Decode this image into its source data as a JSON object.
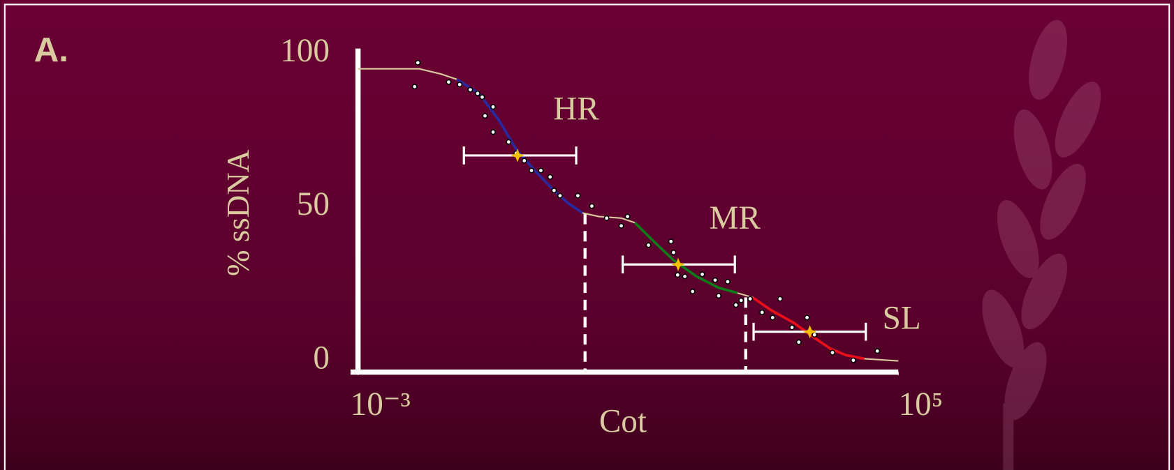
{
  "chart_data": {
    "type": "scatter",
    "panel_label": "A.",
    "xlabel": "Cot",
    "ylabel": "% ssDNA",
    "xscale": "log",
    "xlim": [
      0.001,
      100000
    ],
    "ylim": [
      0,
      100
    ],
    "xticks": [
      {
        "value": 0.001,
        "label": "10⁻³"
      },
      {
        "value": 100000,
        "label": "10⁵"
      }
    ],
    "yticks": [
      0,
      50,
      100
    ],
    "series": [
      {
        "color": "#ffffff",
        "x": [
          0.0077,
          0.0069,
          0.022,
          0.032,
          0.046,
          0.059,
          0.069,
          0.1,
          0.076,
          0.1,
          0.17,
          0.22,
          0.29,
          0.37,
          0.51,
          0.7,
          0.8,
          0.98,
          1.8,
          2.9,
          4.8,
          7.9,
          9.8,
          20,
          43,
          47,
          54,
          69,
          90,
          125,
          194,
          298,
          219,
          394,
          471,
          640,
          962,
          1377,
          1775,
          2670,
          3360,
          4450,
          5740,
          10600,
          21600,
          48900
        ],
        "values": [
          97.1,
          89.3,
          90.8,
          90.0,
          88.3,
          87.1,
          85.9,
          82.7,
          79.8,
          74.5,
          71.3,
          67.6,
          65.2,
          62.0,
          62.0,
          59.9,
          55.5,
          53.8,
          53.8,
          50.4,
          46.5,
          44.0,
          47.0,
          37.7,
          38.9,
          35.3,
          28.0,
          27.5,
          22.6,
          28.2,
          26.3,
          25.8,
          21.2,
          18.2,
          19.7,
          20.2,
          15.8,
          14.1,
          20.2,
          10.9,
          6.1,
          14.1,
          8.5,
          2.7,
          0.2,
          3.2
        ]
      }
    ],
    "curves": [
      {
        "color": "#d9caa0",
        "x": [
          0.001,
          0.0081,
          0.017,
          0.029
        ],
        "values": [
          95.1,
          95.1,
          93.4,
          91.7
        ]
      },
      {
        "color": "#2a2aa0",
        "x": [
          0.029,
          0.062,
          0.12,
          0.22,
          0.43,
          0.8,
          1.3,
          2.1
        ],
        "values": [
          91.7,
          87.1,
          78.6,
          68.9,
          61.6,
          55.5,
          51.3,
          48.2
        ]
      },
      {
        "color": "#d9caa0",
        "x": [
          2.1,
          3.7,
          7.9,
          12.6
        ],
        "values": [
          48.2,
          47.0,
          46.5,
          45.0
        ]
      },
      {
        "color": "#0f7a1a",
        "x": [
          12.6,
          22,
          47,
          103,
          219,
          417
        ],
        "values": [
          45.0,
          39.7,
          32.8,
          27.5,
          23.8,
          22.1
        ]
      },
      {
        "color": "#d9caa0",
        "x": [
          417,
          692
        ],
        "values": [
          22.1,
          20.7
        ]
      },
      {
        "color": "#e8101a",
        "x": [
          692,
          1310,
          2840,
          5320,
          10000,
          16700,
          31400
        ],
        "values": [
          20.7,
          16.5,
          12.4,
          8.0,
          3.9,
          1.9,
          0.7
        ]
      },
      {
        "color": "#d9caa0",
        "x": [
          31400,
          100000
        ],
        "values": [
          0.7,
          0
        ]
      }
    ],
    "ranges": [
      {
        "label": "HR",
        "center": 0.23,
        "low": 0.037,
        "high": 1.7,
        "value": 66.9
      },
      {
        "label": "MR",
        "center": 55,
        "low": 8.3,
        "high": 380,
        "value": 31.4
      },
      {
        "label": "SL",
        "center": 4900,
        "low": 720,
        "high": 33000,
        "value": 9.5
      }
    ],
    "dividers": [
      {
        "x": 2.3,
        "y": 47.9
      },
      {
        "x": 550,
        "y": 20.7
      }
    ]
  }
}
